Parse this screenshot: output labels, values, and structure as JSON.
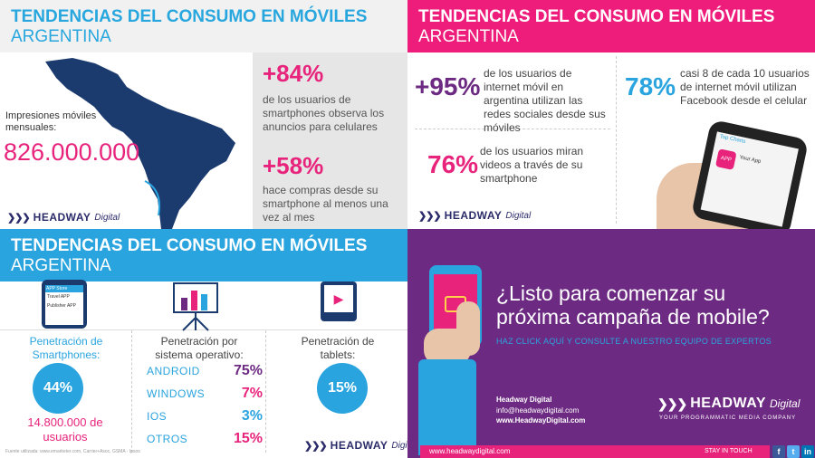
{
  "panel1": {
    "title": "TENDENCIAS DEL CONSUMO EN MÓVILES",
    "subtitle": "ARGENTINA",
    "impressions_label": "Impresiones móviles mensuales:",
    "impressions_value": "826.000.000",
    "stat1": "+84%",
    "stat1_text": "de los usuarios de smartphones observa los anuncios para celulares",
    "stat2": "+58%",
    "stat2_text": "hace compras desde su smartphone al menos una vez al mes",
    "logo": {
      "name": "HEADWAY",
      "suffix": "Digital"
    }
  },
  "panel2": {
    "title": "TENDENCIAS DEL CONSUMO EN MÓVILES",
    "subtitle": "ARGENTINA",
    "stat1": "+95%",
    "stat1_text": "de los usuarios de internet móvil en argentina utilizan las redes sociales desde sus móviles",
    "stat2": "78%",
    "stat2_text": "casi 8 de cada 10 usuarios de internet móvil utilizan Facebook desde el celular",
    "stat3": "76%",
    "stat3_text": "de los usuarios miran videos a través de su smartphone",
    "phone_screen": {
      "title": "Top Charts",
      "app_label": "APP",
      "app_name": "Your App"
    },
    "logo": {
      "name": "HEADWAY",
      "suffix": "Digital"
    }
  },
  "panel3": {
    "title": "TENDENCIAS DEL CONSUMO EN MÓVILES",
    "subtitle": "ARGENTINA",
    "col1_label": "Penetración de Smartphones:",
    "col1_value": "44%",
    "col1_users": "14.800.000 de usuarios",
    "col2_label": "Penetración por sistema operativo:",
    "os": [
      {
        "name": "ANDROID",
        "value": "75%",
        "color": "#6d2a82"
      },
      {
        "name": "WINDOWS",
        "value": "7%",
        "color": "#e8237c"
      },
      {
        "name": "IOS",
        "value": "3%",
        "color": "#2aa4de"
      },
      {
        "name": "OTROS",
        "value": "15%",
        "color": "#e8237c"
      }
    ],
    "col3_label": "Penetración de tablets:",
    "col3_value": "15%",
    "phone_screen": {
      "label": "APP Store",
      "item": "Travel APP",
      "footer": "Publisher APP"
    },
    "source": "Fuente utilizada: www.emarketer.com, Carrier+Asoc, GSMA - Ipsos",
    "logo": {
      "name": "HEADWAY",
      "suffix": "Digital"
    }
  },
  "panel4": {
    "headline1": "¿Listo para comenzar su",
    "headline2": "próxima campaña de mobile?",
    "cta": "HAZ CLICK AQUÍ Y CONSULTE A NUESTRO EQUIPO DE EXPERTOS",
    "company": "Headway Digital",
    "email": "info@headwaydigital.com",
    "website": "www.HeadwayDigital.com",
    "logo_name": "HEADWAY",
    "logo_suffix": "Digital",
    "tagline": "YOUR PROGRAMMATIC MEDIA COMPANY",
    "footer_url": "www.headwaydigital.com",
    "stay": "STAY IN TOUCH",
    "social": {
      "fb": "f",
      "tw": "t",
      "in": "in"
    }
  }
}
